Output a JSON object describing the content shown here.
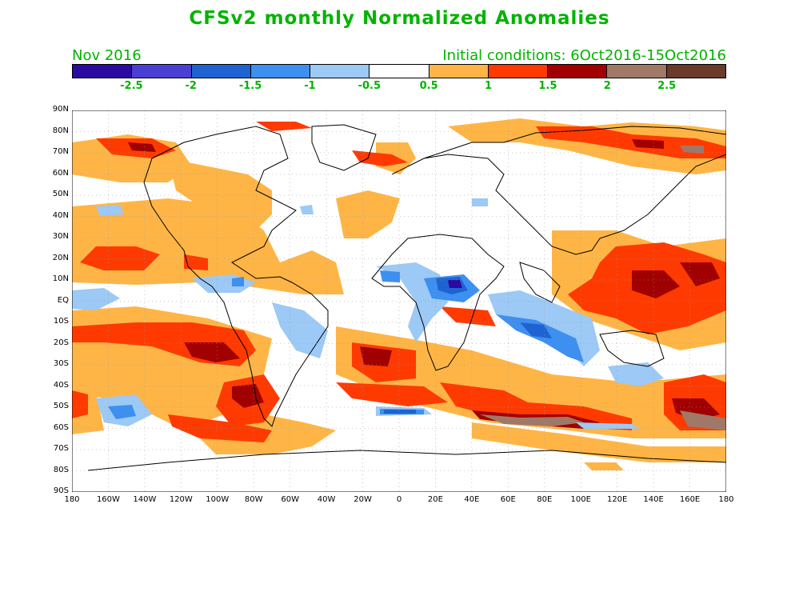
{
  "header": {
    "title": "CFSv2 monthly Normalized Anomalies",
    "month": "Nov 2016",
    "initial_conditions": "Initial conditions: 6Oct2016-15Oct2016"
  },
  "colorbar": {
    "colors": [
      "#2a0aa0",
      "#4a3fd2",
      "#1f63d2",
      "#3d8ff0",
      "#9cc9f5",
      "#ffffff",
      "#ffb545",
      "#ff3a00",
      "#a00000",
      "#a07868",
      "#6a3a2a"
    ],
    "labels": [
      "-2.5",
      "-2",
      "-1.5",
      "-1",
      "-0.5",
      "0.5",
      "1",
      "1.5",
      "2",
      "2.5"
    ]
  },
  "map": {
    "lat_labels": [
      "90N",
      "80N",
      "70N",
      "60N",
      "50N",
      "40N",
      "30N",
      "20N",
      "10N",
      "EQ",
      "10S",
      "20S",
      "30S",
      "40S",
      "50S",
      "60S",
      "70S",
      "80S",
      "90S"
    ],
    "lon_labels": [
      "180",
      "160W",
      "140W",
      "120W",
      "100W",
      "80W",
      "60W",
      "40W",
      "20W",
      "0",
      "20E",
      "40E",
      "60E",
      "80E",
      "100E",
      "120E",
      "140E",
      "160E",
      "180"
    ]
  }
}
